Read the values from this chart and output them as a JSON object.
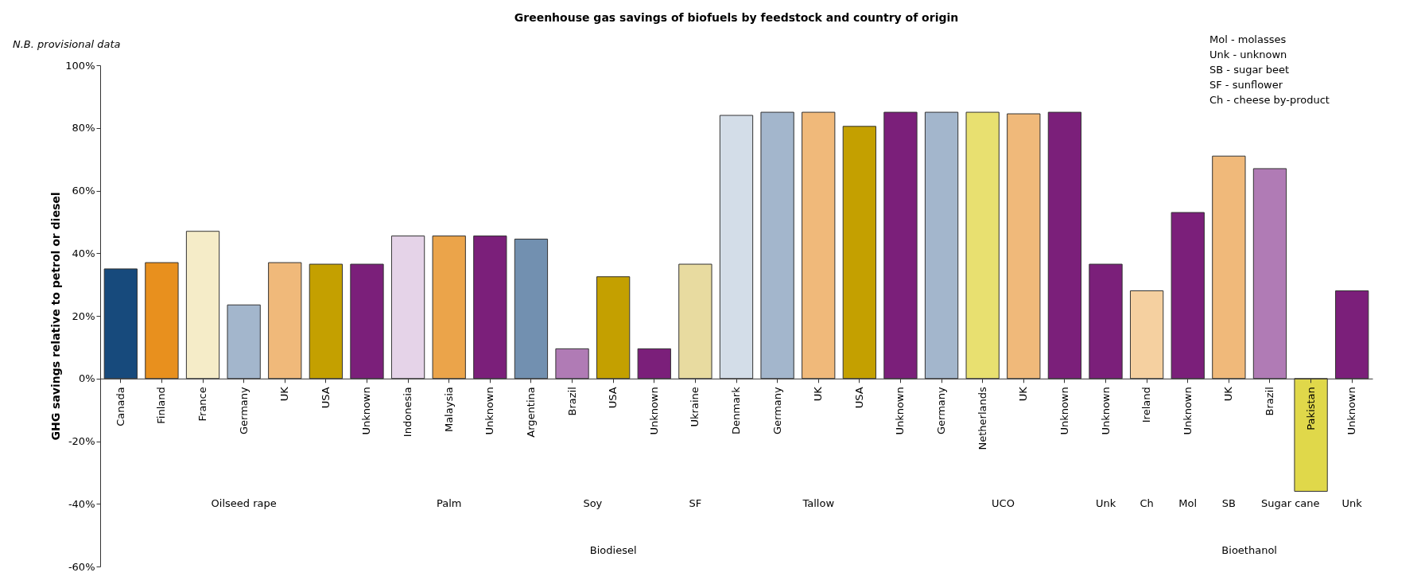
{
  "chart_data": {
    "type": "bar",
    "title": "Greenhouse gas savings of biofuels by feedstock and country of origin",
    "ylabel": "GHG savings relative to petrol or diesel",
    "categories": [
      "Canada",
      "Finland",
      "France",
      "Germany",
      "UK",
      "USA",
      "Unknown",
      "Indonesia",
      "Malaysia",
      "Unknown",
      "Argentina",
      "Brazil",
      "USA",
      "Unknown",
      "Ukraine",
      "Denmark",
      "Germany",
      "UK",
      "USA",
      "Unknown",
      "Germany",
      "Netherlands",
      "UK",
      "Unknown",
      "Unknown",
      "Ireland",
      "Unknown",
      "UK",
      "Brazil",
      "Pakistan",
      "Unknown"
    ],
    "values": [
      35,
      37,
      47,
      23.5,
      37,
      36.5,
      36.5,
      45.5,
      45.5,
      45.5,
      44.5,
      9.5,
      32.5,
      9.5,
      36.5,
      84,
      85,
      85,
      80.5,
      85,
      85,
      85,
      84.5,
      85,
      36.5,
      28,
      53,
      71,
      67,
      -36,
      28
    ],
    "colors": [
      "#174a7c",
      "#e8901e",
      "#f5ecc8",
      "#a3b6cc",
      "#f0b97a",
      "#c4a000",
      "#7b1f7a",
      "#e5d3e8",
      "#eba44a",
      "#7b1f7a",
      "#7290b0",
      "#b07bb5",
      "#c4a000",
      "#7b1f7a",
      "#e8dba0",
      "#d3dde8",
      "#a3b6cc",
      "#f0b97a",
      "#c4a000",
      "#7b1f7a",
      "#a3b6cc",
      "#e8e070",
      "#f0b97a",
      "#7b1f7a",
      "#7b1f7a",
      "#f5d0a0",
      "#7b1f7a",
      "#f0b97a",
      "#b07bb5",
      "#e0d84a",
      "#7b1f7a"
    ],
    "ylim": [
      -60,
      100
    ],
    "yticks": [
      {
        "value": -60,
        "label": "-60%"
      },
      {
        "value": -40,
        "label": "-40%"
      },
      {
        "value": -20,
        "label": "-20%"
      },
      {
        "value": 0,
        "label": "0%"
      },
      {
        "value": 20,
        "label": "20%"
      },
      {
        "value": 40,
        "label": "40%"
      },
      {
        "value": 60,
        "label": "60%"
      },
      {
        "value": 80,
        "label": "80%"
      },
      {
        "value": 100,
        "label": "100%"
      }
    ],
    "annotations": [
      "N.B. provisional data",
      "Mol - molasses",
      "Unk - unknown",
      "SB - sugar beet",
      "SF - sunflower",
      "Ch - cheese by-product",
      "Oilseed rape",
      "Palm",
      "Soy",
      "SF",
      "Tallow",
      "UCO",
      "Unk",
      "Ch",
      "Mol",
      "SB",
      "Sugar cane",
      "Unk",
      "Biodiesel",
      "Bioethanol"
    ]
  }
}
